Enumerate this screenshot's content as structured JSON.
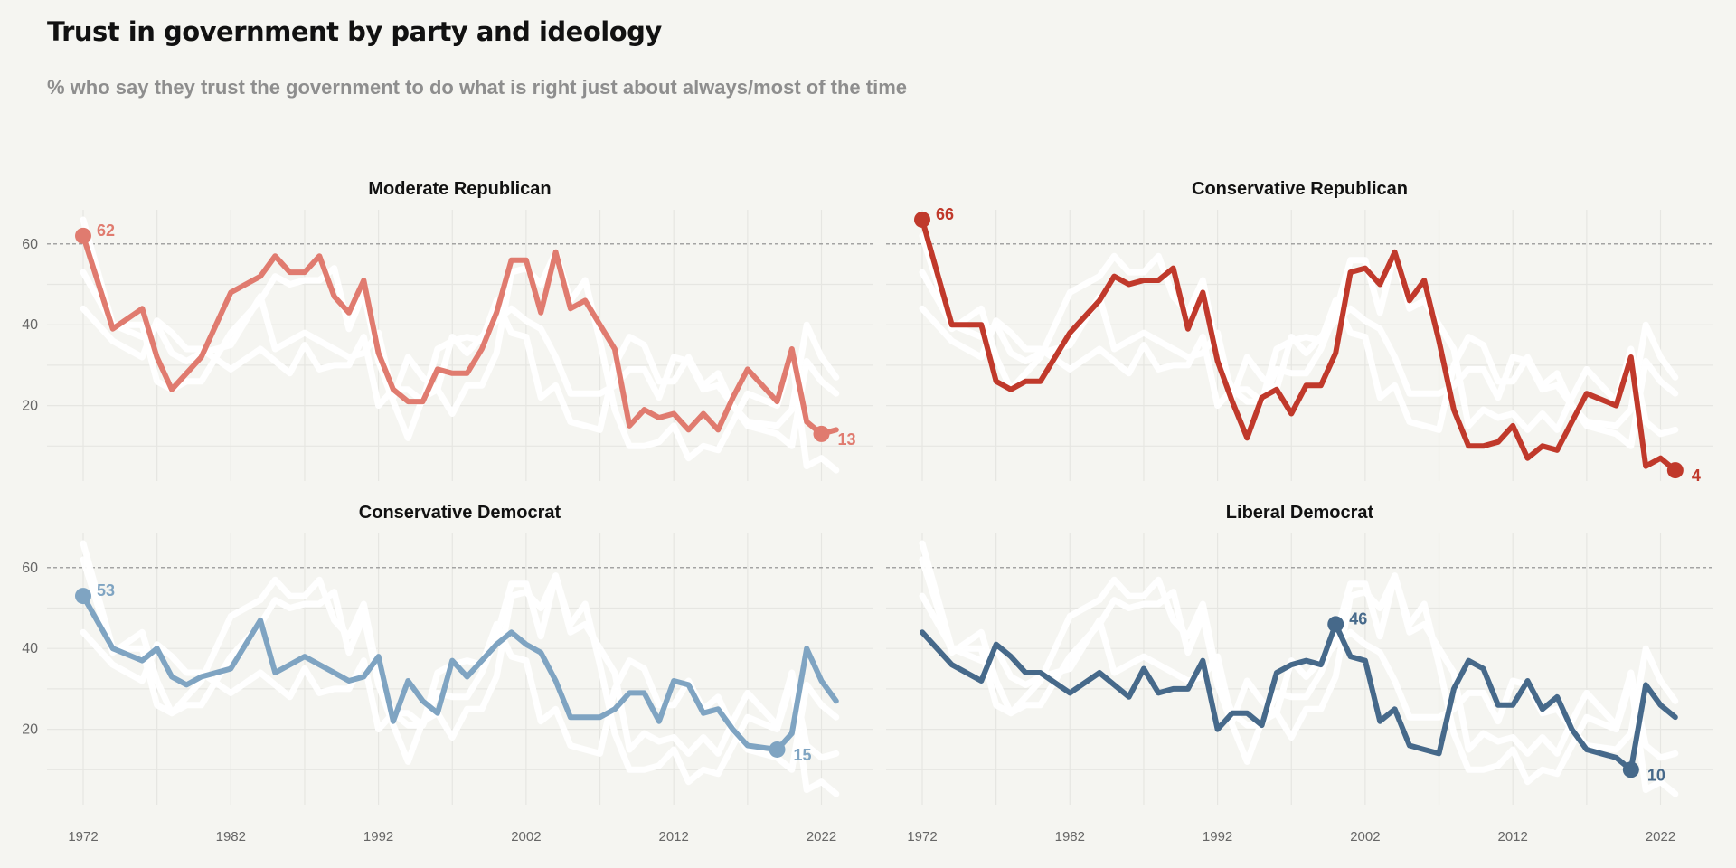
{
  "header": {
    "title": "Trust in government by party and ideology",
    "subtitle": "% who say they trust the government to do what is right just about always/most of the time"
  },
  "chart_data": {
    "type": "line",
    "layout": "small-multiples-2x2",
    "x_ticks": [
      1972,
      1982,
      1992,
      2002,
      2012,
      2022
    ],
    "y_ticks": [
      20,
      40,
      60
    ],
    "xlim": [
      1970,
      2024
    ],
    "ylim": [
      0,
      68
    ],
    "reference_line_y": 60,
    "grid": true,
    "background_series_color": "#ffffff",
    "x": [
      1972,
      1974,
      1976,
      1977,
      1978,
      1979,
      1980,
      1982,
      1984,
      1985,
      1986,
      1987,
      1988,
      1989,
      1990,
      1991,
      1992,
      1993,
      1994,
      1995,
      1996,
      1997,
      1998,
      1999,
      2000,
      2001,
      2002,
      2003,
      2004,
      2005,
      2006,
      2007,
      2008,
      2009,
      2010,
      2011,
      2012,
      2013,
      2014,
      2015,
      2016,
      2017,
      2019,
      2020,
      2021,
      2022,
      2023
    ],
    "series": [
      {
        "name": "Moderate Republican",
        "color": "#e07b6f",
        "values": [
          62,
          39,
          44,
          32,
          24,
          28,
          32,
          48,
          52,
          57,
          53,
          53,
          57,
          47,
          43,
          51,
          33,
          24,
          21,
          21,
          29,
          28,
          28,
          34,
          43,
          56,
          56,
          43,
          58,
          44,
          46,
          40,
          34,
          15,
          19,
          17,
          18,
          14,
          18,
          14,
          22,
          29,
          21,
          34,
          16,
          13,
          14
        ],
        "label_value": 13,
        "label_year": 2022,
        "start_label": 62
      },
      {
        "name": "Conservative Republican",
        "color": "#c0392b",
        "values": [
          66,
          40,
          40,
          26,
          24,
          26,
          26,
          38,
          46,
          52,
          50,
          51,
          51,
          54,
          39,
          48,
          31,
          21,
          12,
          22,
          24,
          18,
          25,
          25,
          33,
          53,
          54,
          50,
          58,
          46,
          51,
          36,
          19,
          10,
          10,
          11,
          15,
          7,
          10,
          9,
          16,
          23,
          20,
          32,
          5,
          7,
          4
        ],
        "label_value": 4,
        "label_year": 2023,
        "start_label": 66
      },
      {
        "name": "Conservative Democrat",
        "color": "#7fa4c2",
        "values": [
          53,
          40,
          37,
          40,
          33,
          31,
          33,
          35,
          47,
          34,
          36,
          38,
          36,
          34,
          32,
          33,
          38,
          22,
          32,
          27,
          24,
          37,
          33,
          37,
          41,
          44,
          41,
          39,
          32,
          23,
          23,
          23,
          25,
          29,
          29,
          22,
          32,
          31,
          24,
          25,
          20,
          16,
          15,
          19,
          40,
          32,
          27
        ],
        "label_value": 15,
        "label_year": 2019,
        "start_label": 53
      },
      {
        "name": "Liberal Democrat",
        "color": "#46698a",
        "values": [
          44,
          36,
          32,
          41,
          38,
          34,
          34,
          29,
          34,
          31,
          28,
          35,
          29,
          30,
          30,
          37,
          20,
          24,
          24,
          21,
          34,
          36,
          37,
          36,
          46,
          38,
          37,
          22,
          25,
          16,
          15,
          14,
          30,
          37,
          35,
          26,
          26,
          32,
          25,
          28,
          20,
          15,
          13,
          10,
          31,
          26,
          23
        ],
        "label_value": 10,
        "label_year": 2020,
        "mid_label": 46,
        "mid_label_year": 2000
      }
    ]
  }
}
